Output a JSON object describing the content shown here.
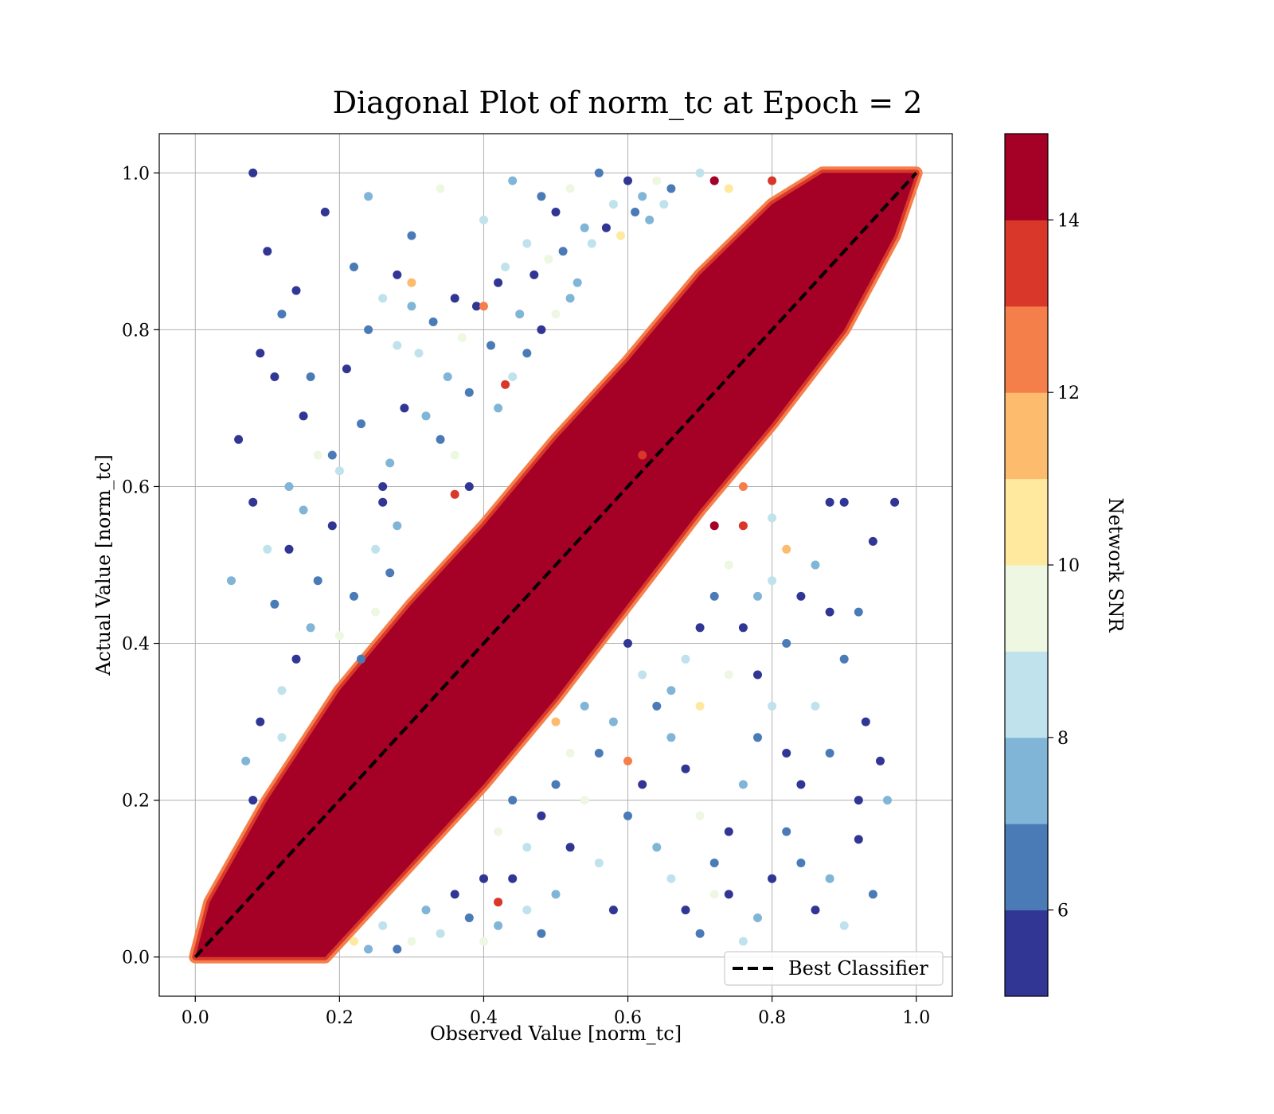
{
  "chart_data": {
    "type": "scatter",
    "title": "Diagonal Plot of norm_tc at Epoch = 2",
    "xlabel": "Observed Value [norm_tc]",
    "ylabel": "Actual Value [norm_tc]",
    "xlim": [
      -0.05,
      1.05
    ],
    "ylim": [
      -0.05,
      1.05
    ],
    "xticks": [
      "0.0",
      "0.2",
      "0.4",
      "0.6",
      "0.8",
      "1.0"
    ],
    "yticks": [
      "0.0",
      "0.2",
      "0.4",
      "0.6",
      "0.8",
      "1.0"
    ],
    "grid": true,
    "reference_line": {
      "label": "Best Classifier",
      "from": [
        0,
        0
      ],
      "to": [
        1,
        1
      ],
      "style": "dashed",
      "color": "#000000"
    },
    "legend": {
      "placement": "bottom-right",
      "entries": [
        "Best Classifier"
      ]
    },
    "colorbar": {
      "label": "Network SNR",
      "range": [
        5,
        15
      ],
      "ticks": [
        "6",
        "8",
        "10",
        "12",
        "14"
      ],
      "bins": [
        {
          "from": 5,
          "to": 6,
          "color": "#313695"
        },
        {
          "from": 6,
          "to": 7,
          "color": "#4a7bb7"
        },
        {
          "from": 7,
          "to": 8,
          "color": "#80b5d7"
        },
        {
          "from": 8,
          "to": 9,
          "color": "#bfe2ec"
        },
        {
          "from": 9,
          "to": 10,
          "color": "#eef7e2"
        },
        {
          "from": 10,
          "to": 11,
          "color": "#fee99e"
        },
        {
          "from": 11,
          "to": 12,
          "color": "#fcbb6d"
        },
        {
          "from": 12,
          "to": 13,
          "color": "#f57f4b"
        },
        {
          "from": 13,
          "to": 14,
          "color": "#d83729"
        },
        {
          "from": 14,
          "to": 15,
          "color": "#a50026"
        }
      ]
    },
    "series": [
      {
        "description": "dense high-SNR band along diagonal (SNR >= 14)",
        "color": "#a50026",
        "band_upper": [
          [
            0.0,
            0.0
          ],
          [
            0.02,
            0.07
          ],
          [
            0.1,
            0.2
          ],
          [
            0.2,
            0.34
          ],
          [
            0.3,
            0.45
          ],
          [
            0.4,
            0.55
          ],
          [
            0.5,
            0.66
          ],
          [
            0.6,
            0.76
          ],
          [
            0.7,
            0.87
          ],
          [
            0.8,
            0.96
          ],
          [
            0.87,
            1.0
          ],
          [
            1.0,
            1.0
          ]
        ],
        "band_lower": [
          [
            0.0,
            0.0
          ],
          [
            0.18,
            0.0
          ],
          [
            0.3,
            0.12
          ],
          [
            0.4,
            0.22
          ],
          [
            0.5,
            0.33
          ],
          [
            0.6,
            0.45
          ],
          [
            0.7,
            0.57
          ],
          [
            0.8,
            0.68
          ],
          [
            0.9,
            0.8
          ],
          [
            0.97,
            0.92
          ],
          [
            1.0,
            1.0
          ]
        ]
      },
      {
        "description": "scattered low-SNR predictions",
        "points": [
          [
            0.08,
            1.0,
            5.2
          ],
          [
            0.1,
            0.9,
            5.4
          ],
          [
            0.06,
            0.66,
            5.1
          ],
          [
            0.05,
            0.48,
            7.5
          ],
          [
            0.09,
            0.77,
            5.6
          ],
          [
            0.12,
            0.82,
            6.2
          ],
          [
            0.14,
            0.85,
            5.3
          ],
          [
            0.16,
            0.74,
            6.8
          ],
          [
            0.18,
            0.95,
            5.5
          ],
          [
            0.2,
            0.62,
            8.4
          ],
          [
            0.22,
            0.88,
            6.1
          ],
          [
            0.24,
            0.97,
            7.2
          ],
          [
            0.26,
            0.58,
            5.7
          ],
          [
            0.28,
            0.78,
            8.8
          ],
          [
            0.3,
            0.92,
            6.4
          ],
          [
            0.32,
            0.69,
            7.7
          ],
          [
            0.34,
            0.98,
            9.3
          ],
          [
            0.36,
            0.84,
            5.9
          ],
          [
            0.38,
            0.72,
            6.6
          ],
          [
            0.4,
            0.94,
            8.1
          ],
          [
            0.42,
            0.86,
            5.2
          ],
          [
            0.44,
            0.99,
            7.4
          ],
          [
            0.46,
            0.91,
            8.7
          ],
          [
            0.48,
            0.97,
            6.3
          ],
          [
            0.5,
            0.95,
            5.8
          ],
          [
            0.52,
            0.98,
            9.6
          ],
          [
            0.54,
            0.93,
            7.9
          ],
          [
            0.56,
            1.0,
            6.9
          ],
          [
            0.58,
            0.96,
            8.3
          ],
          [
            0.6,
            0.99,
            5.4
          ],
          [
            0.62,
            0.97,
            7.1
          ],
          [
            0.64,
            0.99,
            9.2
          ],
          [
            0.66,
            0.98,
            6.5
          ],
          [
            0.7,
            1.0,
            8.9
          ],
          [
            0.72,
            0.99,
            5.7
          ],
          [
            0.74,
            0.98,
            10.4
          ],
          [
            0.21,
            0.75,
            5.3
          ],
          [
            0.23,
            0.68,
            6.7
          ],
          [
            0.27,
            0.63,
            7.3
          ],
          [
            0.29,
            0.7,
            5.9
          ],
          [
            0.31,
            0.77,
            8.5
          ],
          [
            0.33,
            0.81,
            6.2
          ],
          [
            0.35,
            0.74,
            7.6
          ],
          [
            0.37,
            0.79,
            9.1
          ],
          [
            0.39,
            0.83,
            5.5
          ],
          [
            0.41,
            0.78,
            6.8
          ],
          [
            0.43,
            0.88,
            8.2
          ],
          [
            0.45,
            0.82,
            7.0
          ],
          [
            0.47,
            0.87,
            5.6
          ],
          [
            0.49,
            0.89,
            9.4
          ],
          [
            0.51,
            0.9,
            6.1
          ],
          [
            0.53,
            0.86,
            7.8
          ],
          [
            0.55,
            0.91,
            8.6
          ],
          [
            0.57,
            0.93,
            5.3
          ],
          [
            0.59,
            0.92,
            10.6
          ],
          [
            0.61,
            0.95,
            6.4
          ],
          [
            0.63,
            0.94,
            7.5
          ],
          [
            0.65,
            0.96,
            8.8
          ],
          [
            0.11,
            0.45,
            6.6
          ],
          [
            0.13,
            0.52,
            5.2
          ],
          [
            0.15,
            0.57,
            7.9
          ],
          [
            0.17,
            0.48,
            6.3
          ],
          [
            0.19,
            0.55,
            5.7
          ],
          [
            0.25,
            0.52,
            8.6
          ],
          [
            0.27,
            0.49,
            6.9
          ],
          [
            0.16,
            0.42,
            7.4
          ],
          [
            0.14,
            0.38,
            5.9
          ],
          [
            0.12,
            0.34,
            8.1
          ],
          [
            0.2,
            0.41,
            9.2
          ],
          [
            0.22,
            0.46,
            6.5
          ],
          [
            0.09,
            0.3,
            5.8
          ],
          [
            0.07,
            0.25,
            7.7
          ],
          [
            0.08,
            0.2,
            5.3
          ],
          [
            0.12,
            0.28,
            8.9
          ],
          [
            0.23,
            0.38,
            6.1
          ],
          [
            0.25,
            0.44,
            9.7
          ],
          [
            0.26,
            0.6,
            5.4
          ],
          [
            0.28,
            0.55,
            7.2
          ],
          [
            0.19,
            0.64,
            6.2
          ],
          [
            0.15,
            0.69,
            5.5
          ],
          [
            0.13,
            0.6,
            7.1
          ],
          [
            0.17,
            0.64,
            9.5
          ],
          [
            0.11,
            0.74,
            5.8
          ],
          [
            0.1,
            0.52,
            8.4
          ],
          [
            0.08,
            0.58,
            5.1
          ],
          [
            0.24,
            0.8,
            6.7
          ],
          [
            0.26,
            0.84,
            8.3
          ],
          [
            0.28,
            0.87,
            5.6
          ],
          [
            0.3,
            0.83,
            7.9
          ],
          [
            0.34,
            0.66,
            6.4
          ],
          [
            0.36,
            0.64,
            9.1
          ],
          [
            0.38,
            0.6,
            5.7
          ],
          [
            0.42,
            0.7,
            7.6
          ],
          [
            0.44,
            0.74,
            8.8
          ],
          [
            0.46,
            0.77,
            6.1
          ],
          [
            0.48,
            0.8,
            5.3
          ],
          [
            0.5,
            0.82,
            9.9
          ],
          [
            0.52,
            0.84,
            7.3
          ],
          [
            0.43,
            0.73,
            13.8
          ],
          [
            0.36,
            0.59,
            13.2
          ],
          [
            0.72,
            0.99,
            14.6
          ],
          [
            0.8,
            0.99,
            13.9
          ],
          [
            0.4,
            0.83,
            12.8
          ],
          [
            0.3,
            0.86,
            11.6
          ],
          [
            0.62,
            0.64,
            13.4
          ],
          [
            0.9,
            0.58,
            5.2
          ],
          [
            0.94,
            0.53,
            5.6
          ],
          [
            0.97,
            0.58,
            5.3
          ],
          [
            0.88,
            0.44,
            5.4
          ],
          [
            0.92,
            0.44,
            6.8
          ],
          [
            0.86,
            0.5,
            7.7
          ],
          [
            0.84,
            0.46,
            5.8
          ],
          [
            0.82,
            0.4,
            6.2
          ],
          [
            0.8,
            0.48,
            8.4
          ],
          [
            0.78,
            0.36,
            5.5
          ],
          [
            0.9,
            0.38,
            6.6
          ],
          [
            0.93,
            0.3,
            5.1
          ],
          [
            0.95,
            0.25,
            5.9
          ],
          [
            0.92,
            0.2,
            5.3
          ],
          [
            0.96,
            0.2,
            7.1
          ],
          [
            0.88,
            0.26,
            6.4
          ],
          [
            0.86,
            0.32,
            8.6
          ],
          [
            0.84,
            0.22,
            5.7
          ],
          [
            0.82,
            0.16,
            6.9
          ],
          [
            0.8,
            0.1,
            5.2
          ],
          [
            0.78,
            0.05,
            7.4
          ],
          [
            0.76,
            0.02,
            8.2
          ],
          [
            0.74,
            0.08,
            5.8
          ],
          [
            0.72,
            0.12,
            6.3
          ],
          [
            0.7,
            0.18,
            9.1
          ],
          [
            0.68,
            0.24,
            5.6
          ],
          [
            0.66,
            0.28,
            7.8
          ],
          [
            0.64,
            0.32,
            6.1
          ],
          [
            0.62,
            0.36,
            8.9
          ],
          [
            0.6,
            0.4,
            5.4
          ],
          [
            0.58,
            0.3,
            7.2
          ],
          [
            0.56,
            0.26,
            6.5
          ],
          [
            0.54,
            0.2,
            9.4
          ],
          [
            0.52,
            0.14,
            5.9
          ],
          [
            0.5,
            0.08,
            7.6
          ],
          [
            0.48,
            0.03,
            6.2
          ],
          [
            0.46,
            0.06,
            8.3
          ],
          [
            0.44,
            0.1,
            5.5
          ],
          [
            0.42,
            0.04,
            7.9
          ],
          [
            0.4,
            0.02,
            9.6
          ],
          [
            0.38,
            0.05,
            6.8
          ],
          [
            0.36,
            0.08,
            5.3
          ],
          [
            0.34,
            0.03,
            8.7
          ],
          [
            0.32,
            0.06,
            7.0
          ],
          [
            0.3,
            0.02,
            9.8
          ],
          [
            0.28,
            0.01,
            6.4
          ],
          [
            0.26,
            0.04,
            8.1
          ],
          [
            0.24,
            0.01,
            7.3
          ],
          [
            0.22,
            0.02,
            10.3
          ],
          [
            0.6,
            0.18,
            6.7
          ],
          [
            0.62,
            0.22,
            5.8
          ],
          [
            0.64,
            0.14,
            7.5
          ],
          [
            0.66,
            0.1,
            8.8
          ],
          [
            0.68,
            0.06,
            5.4
          ],
          [
            0.7,
            0.03,
            6.9
          ],
          [
            0.72,
            0.08,
            9.2
          ],
          [
            0.74,
            0.16,
            5.7
          ],
          [
            0.76,
            0.22,
            7.7
          ],
          [
            0.78,
            0.28,
            6.3
          ],
          [
            0.8,
            0.32,
            8.5
          ],
          [
            0.82,
            0.26,
            5.2
          ],
          [
            0.84,
            0.12,
            6.6
          ],
          [
            0.86,
            0.06,
            5.9
          ],
          [
            0.88,
            0.1,
            7.3
          ],
          [
            0.9,
            0.04,
            8.2
          ],
          [
            0.92,
            0.15,
            5.6
          ],
          [
            0.94,
            0.08,
            6.8
          ],
          [
            0.56,
            0.12,
            8.4
          ],
          [
            0.58,
            0.06,
            5.5
          ],
          [
            0.54,
            0.32,
            7.1
          ],
          [
            0.52,
            0.26,
            9.0
          ],
          [
            0.5,
            0.22,
            6.2
          ],
          [
            0.48,
            0.18,
            5.8
          ],
          [
            0.46,
            0.14,
            8.7
          ],
          [
            0.44,
            0.2,
            6.9
          ],
          [
            0.42,
            0.16,
            9.7
          ],
          [
            0.4,
            0.1,
            5.6
          ],
          [
            0.66,
            0.34,
            7.4
          ],
          [
            0.68,
            0.38,
            8.1
          ],
          [
            0.7,
            0.42,
            5.3
          ],
          [
            0.72,
            0.46,
            6.7
          ],
          [
            0.74,
            0.5,
            9.3
          ],
          [
            0.76,
            0.42,
            5.9
          ],
          [
            0.78,
            0.46,
            7.0
          ],
          [
            0.8,
            0.56,
            8.8
          ],
          [
            0.7,
            0.32,
            10.2
          ],
          [
            0.74,
            0.36,
            9.9
          ],
          [
            0.88,
            0.58,
            5.4
          ],
          [
            0.76,
            0.55,
            13.5
          ],
          [
            0.72,
            0.55,
            14.2
          ],
          [
            0.42,
            0.07,
            13.6
          ],
          [
            0.6,
            0.25,
            12.9
          ],
          [
            0.5,
            0.3,
            11.7
          ],
          [
            0.76,
            0.6,
            12.2
          ],
          [
            0.82,
            0.52,
            11.3
          ]
        ]
      }
    ]
  }
}
